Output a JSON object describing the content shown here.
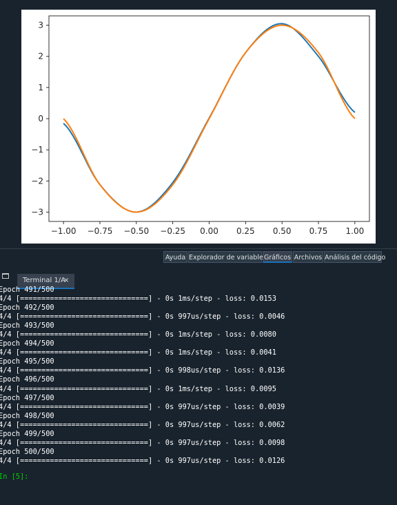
{
  "chart_data": {
    "type": "line",
    "title": "",
    "xlabel": "",
    "ylabel": "",
    "xlim": [
      -1.1,
      1.1
    ],
    "ylim": [
      -3.3,
      3.3
    ],
    "xticks": [
      "−1.00",
      "−0.75",
      "−0.50",
      "−0.25",
      "0.00",
      "0.25",
      "0.50",
      "0.75",
      "1.00"
    ],
    "yticks": [
      "3",
      "2",
      "1",
      "0",
      "−1",
      "−2",
      "−3"
    ],
    "series": [
      {
        "color": "#1f77b4",
        "x": [
          -1.0,
          -0.75,
          -0.5,
          -0.25,
          0.0,
          0.25,
          0.5,
          0.75,
          1.0
        ],
        "y": [
          -0.15,
          -2.12,
          -3.0,
          -2.05,
          0.02,
          2.12,
          3.05,
          2.0,
          0.2
        ]
      },
      {
        "color": "#ff7f0e",
        "x": [
          -1.0,
          -0.75,
          -0.5,
          -0.25,
          0.0,
          0.25,
          0.5,
          0.75,
          1.0
        ],
        "y": [
          0.0,
          -2.12,
          -3.0,
          -2.12,
          0.0,
          2.12,
          3.0,
          2.12,
          0.0
        ]
      }
    ]
  },
  "pane_tabs": [
    {
      "label": "Ayuda"
    },
    {
      "label": "Explorador de variables"
    },
    {
      "label": "Gráficos"
    },
    {
      "label": "Archivos"
    },
    {
      "label": "Análisis del código"
    }
  ],
  "console": {
    "options_icon": "window-icon",
    "tab_label": "Terminal 1/A",
    "tab_close": "×",
    "lines": [
      "Epoch 491/500",
      "4/4 [==============================] - 0s 1ms/step - loss: 0.0153",
      "Epoch 492/500",
      "4/4 [==============================] - 0s 997us/step - loss: 0.0046",
      "Epoch 493/500",
      "4/4 [==============================] - 0s 1ms/step - loss: 0.0080",
      "Epoch 494/500",
      "4/4 [==============================] - 0s 1ms/step - loss: 0.0041",
      "Epoch 495/500",
      "4/4 [==============================] - 0s 998us/step - loss: 0.0136",
      "Epoch 496/500",
      "4/4 [==============================] - 0s 1ms/step - loss: 0.0095",
      "Epoch 497/500",
      "4/4 [==============================] - 0s 997us/step - loss: 0.0039",
      "Epoch 498/500",
      "4/4 [==============================] - 0s 997us/step - loss: 0.0062",
      "Epoch 499/500",
      "4/4 [==============================] - 0s 997us/step - loss: 0.0098",
      "Epoch 500/500",
      "4/4 [==============================] - 0s 997us/step - loss: 0.0126"
    ],
    "prompt": "In [5]:"
  }
}
